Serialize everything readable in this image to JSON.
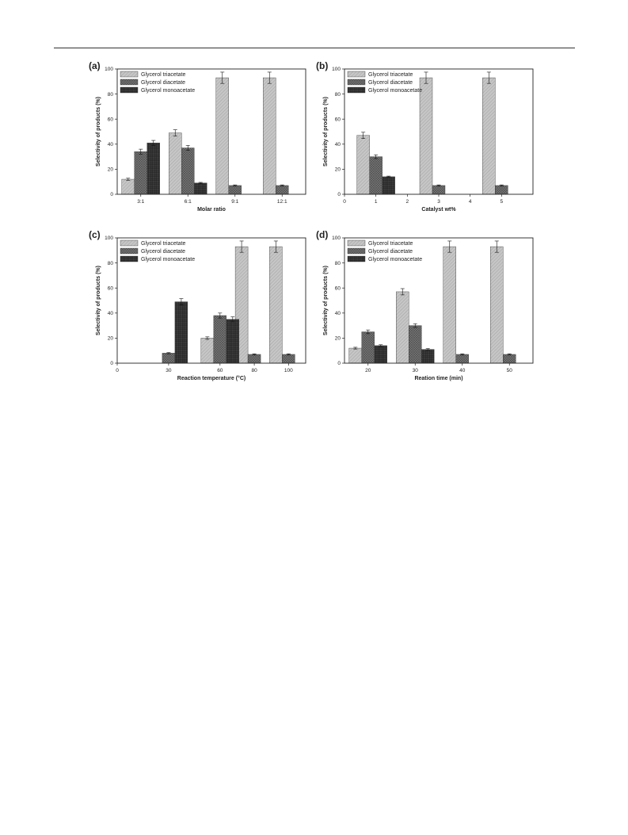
{
  "colors": {
    "triacetate": "#c6c6c6",
    "diacetate": "#7a7a7a",
    "monoacetate": "#3a3a3a",
    "axis": "#222222"
  },
  "series_names": [
    "Glycerol triacetate",
    "Glycerol diacetate",
    "Glycerol monoacetate"
  ],
  "chart_data": [
    {
      "id": "a",
      "panel_letter": "(a)",
      "type": "bar",
      "xlabel": "Molar ratio",
      "ylabel": "Selectivity of products (%)",
      "ylim": [
        0,
        100
      ],
      "y_ticks": [
        0,
        20,
        40,
        60,
        80,
        100
      ],
      "x_axis_kind": "categorical",
      "categories": [
        "3:1",
        "6:1",
        "9:1",
        "12:1"
      ],
      "legend": "top-left",
      "series": [
        {
          "name": "Glycerol triacetate",
          "values": [
            12,
            49,
            93,
            93
          ],
          "errors": [
            0.8,
            2.5,
            4.5,
            4.5
          ]
        },
        {
          "name": "Glycerol diacetate",
          "values": [
            34,
            37,
            7,
            7
          ],
          "errors": [
            2,
            2,
            0.5,
            0.5
          ]
        },
        {
          "name": "Glycerol monoacetate",
          "values": [
            41,
            9,
            null,
            null
          ],
          "errors": [
            2,
            0.5,
            0,
            0
          ]
        }
      ]
    },
    {
      "id": "b",
      "panel_letter": "(b)",
      "type": "bar",
      "xlabel": "Catalyst wt%",
      "ylabel": "Selectivity of products (%)",
      "ylim": [
        0,
        100
      ],
      "y_ticks": [
        0,
        20,
        40,
        60,
        80,
        100
      ],
      "x_axis_kind": "numeric",
      "xlim": [
        0,
        6
      ],
      "x_ticks": [
        0,
        1,
        2,
        3,
        4,
        5
      ],
      "categories": [
        "1",
        "3",
        "5"
      ],
      "x": [
        1,
        3,
        5
      ],
      "legend": "top-left",
      "series": [
        {
          "name": "Glycerol triacetate",
          "values": [
            47,
            93,
            93
          ],
          "errors": [
            2.5,
            4.5,
            4.5
          ]
        },
        {
          "name": "Glycerol diacetate",
          "values": [
            30,
            7,
            7
          ],
          "errors": [
            1.5,
            0.5,
            0.5
          ]
        },
        {
          "name": "Glycerol monoacetate",
          "values": [
            14,
            null,
            null
          ],
          "errors": [
            0.5,
            0,
            0
          ]
        }
      ]
    },
    {
      "id": "c",
      "panel_letter": "(c)",
      "type": "bar",
      "xlabel": "Reaction temperature (°C)",
      "ylabel": "Selectivity of products (%)",
      "ylim": [
        0,
        100
      ],
      "y_ticks": [
        0,
        20,
        40,
        60,
        80,
        100
      ],
      "x_axis_kind": "numeric",
      "xlim": [
        0,
        110
      ],
      "x_ticks": [
        0,
        30,
        60,
        80,
        100
      ],
      "categories": [
        "30",
        "60",
        "80",
        "100"
      ],
      "x": [
        30,
        60,
        80,
        100
      ],
      "legend": "top-left",
      "series": [
        {
          "name": "Glycerol triacetate",
          "values": [
            null,
            20,
            93,
            93
          ],
          "errors": [
            0,
            1,
            4.5,
            4.5
          ]
        },
        {
          "name": "Glycerol diacetate",
          "values": [
            8,
            38,
            7,
            7
          ],
          "errors": [
            0.5,
            2,
            0.5,
            0.5
          ]
        },
        {
          "name": "Glycerol monoacetate",
          "values": [
            49,
            35,
            null,
            null
          ],
          "errors": [
            2.5,
            2,
            0,
            0
          ]
        }
      ]
    },
    {
      "id": "d",
      "panel_letter": "(d)",
      "type": "bar",
      "xlabel": "Reation time (min)",
      "ylabel": "Selectivity of products (%)",
      "ylim": [
        0,
        100
      ],
      "y_ticks": [
        0,
        20,
        40,
        60,
        80,
        100
      ],
      "x_axis_kind": "categorical",
      "categories": [
        "20",
        "30",
        "40",
        "50"
      ],
      "legend": "top-left",
      "series": [
        {
          "name": "Glycerol triacetate",
          "values": [
            12,
            57,
            93,
            93
          ],
          "errors": [
            0.7,
            2.5,
            4.5,
            4.5
          ]
        },
        {
          "name": "Glycerol diacetate",
          "values": [
            25,
            30,
            7,
            7
          ],
          "errors": [
            1.5,
            1.5,
            0.5,
            0.5
          ]
        },
        {
          "name": "Glycerol monoacetate",
          "values": [
            14,
            11,
            null,
            null
          ],
          "errors": [
            0.7,
            0.7,
            0,
            0
          ]
        }
      ]
    }
  ]
}
